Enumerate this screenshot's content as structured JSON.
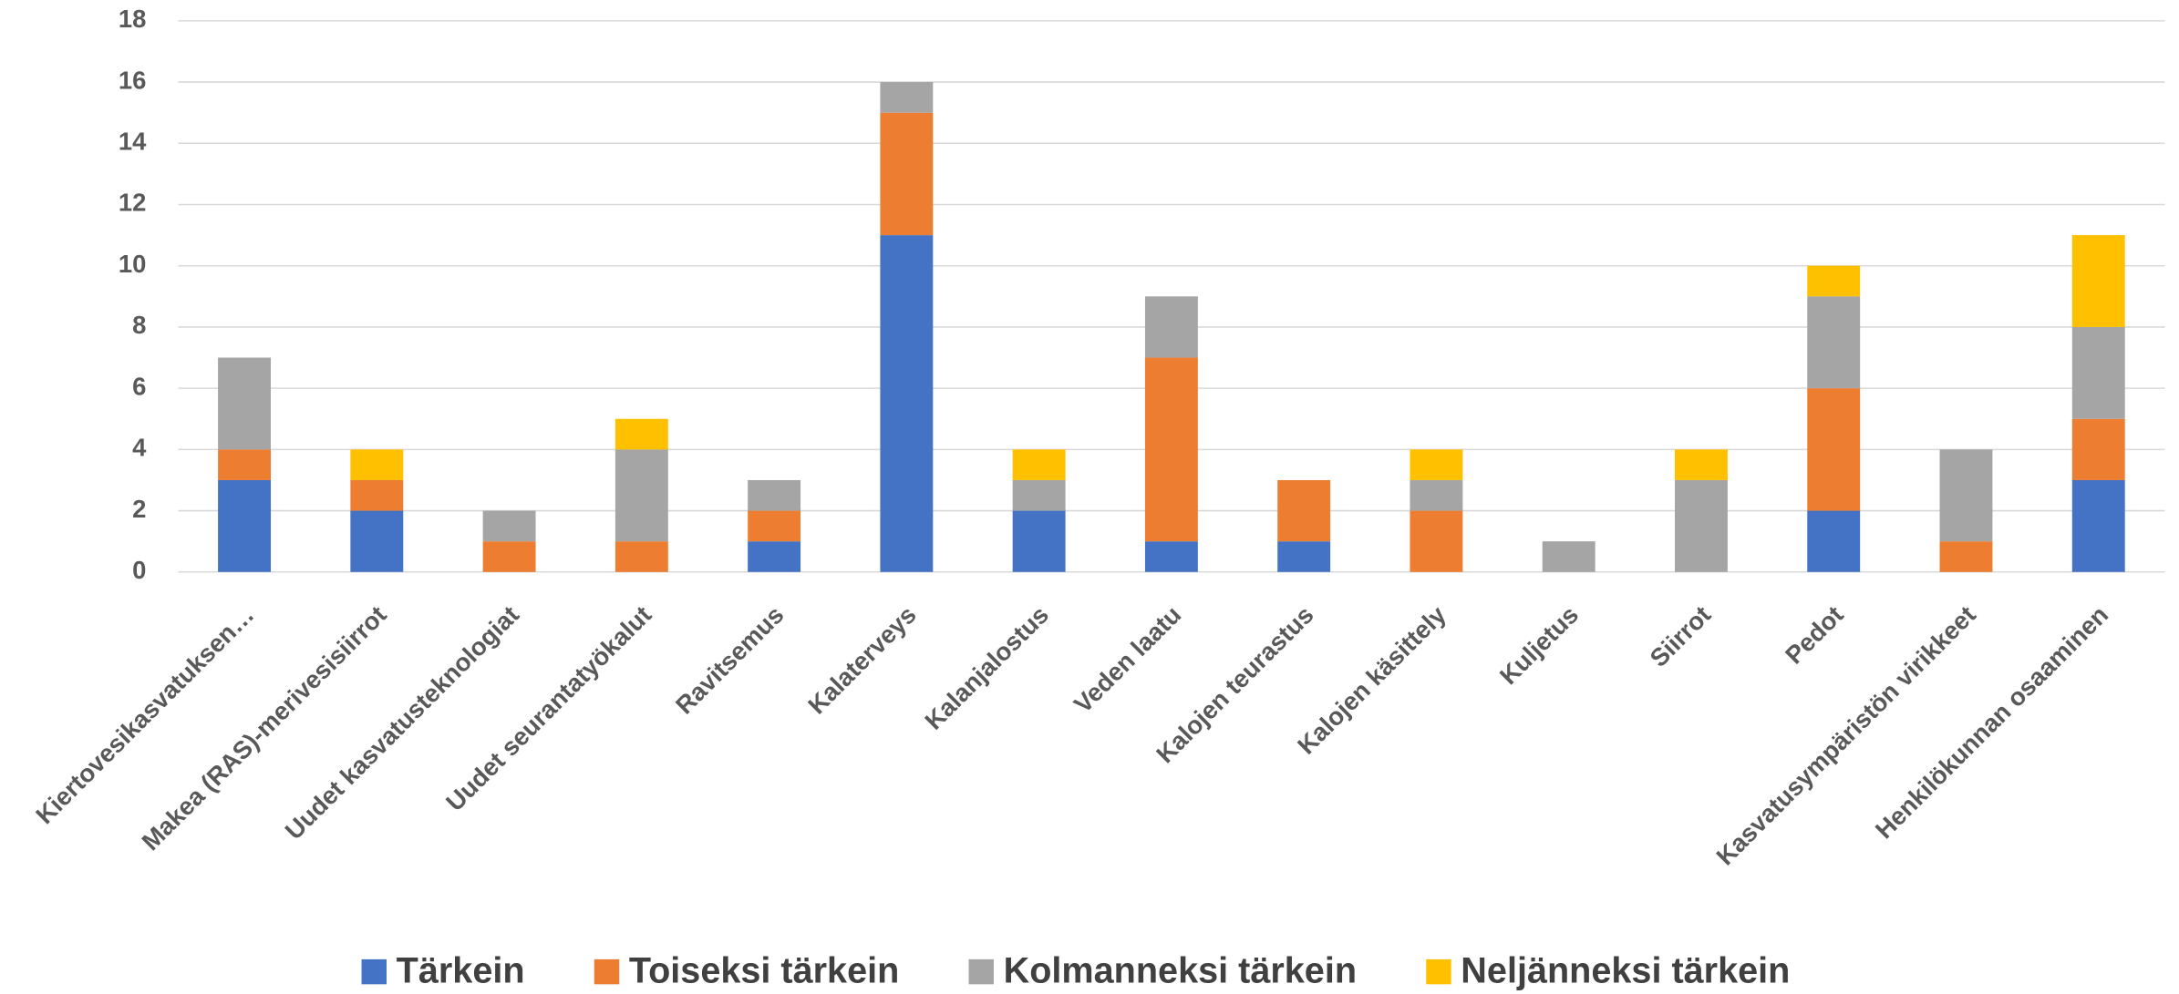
{
  "chart_data": {
    "type": "stacked_bar",
    "categories": [
      "Kiertovesikasvatuksen…",
      "Makea (RAS)-merivesisiirrot",
      "Uudet kasvatusteknologiat",
      "Uudet seurantatyökalut",
      "Ravitsemus",
      "Kalaterveys",
      "Kalanjalostus",
      "Veden laatu",
      "Kalojen teurastus",
      "Kalojen käsittely",
      "Kuljetus",
      "Siirrot",
      "Pedot",
      "Kasvatusympäristön virikkeet",
      "Henkilökunnan osaaminen"
    ],
    "series": [
      {
        "name": "Tärkein",
        "color": "#4472c4",
        "values": [
          3,
          2,
          0,
          0,
          1,
          11,
          2,
          1,
          1,
          0,
          0,
          0,
          2,
          0,
          3
        ]
      },
      {
        "name": "Toiseksi tärkein",
        "color": "#ed7d31",
        "values": [
          1,
          1,
          1,
          1,
          1,
          4,
          0,
          6,
          2,
          2,
          0,
          0,
          4,
          1,
          2
        ]
      },
      {
        "name": "Kolmanneksi tärkein",
        "color": "#a5a5a5",
        "values": [
          3,
          0,
          1,
          3,
          1,
          1,
          1,
          2,
          0,
          1,
          1,
          3,
          3,
          3,
          3
        ]
      },
      {
        "name": "Neljänneksi tärkein",
        "color": "#ffc000",
        "values": [
          0,
          1,
          0,
          1,
          0,
          0,
          1,
          0,
          0,
          1,
          0,
          1,
          1,
          0,
          3
        ]
      }
    ],
    "ylim": [
      0,
      18
    ],
    "yticks": [
      0,
      2,
      4,
      6,
      8,
      10,
      12,
      14,
      16,
      18
    ],
    "grid": true,
    "legend": "bottom"
  }
}
